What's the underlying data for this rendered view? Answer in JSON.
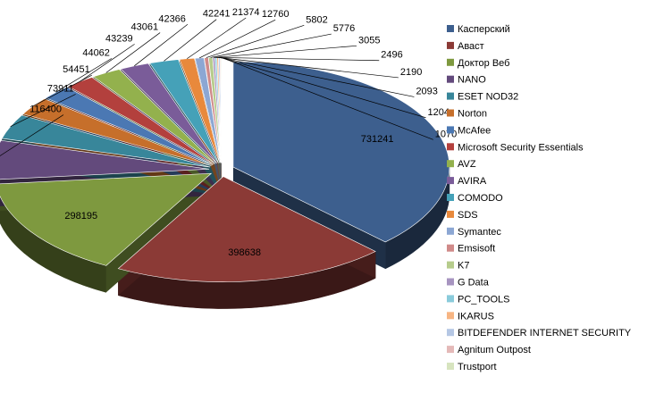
{
  "chart_data": {
    "type": "pie",
    "style": "3d-exploded",
    "legend_position": "right",
    "title": "",
    "series": [
      {
        "name": "Касперский",
        "value": 731241,
        "color": "#3D5F8E"
      },
      {
        "name": "Аваст",
        "value": 398638,
        "color": "#8B3A36"
      },
      {
        "name": "Доктор Веб",
        "value": 298195,
        "color": "#7E993F"
      },
      {
        "name": "NANO",
        "value": 116400,
        "color": "#634A7C"
      },
      {
        "name": "ESET NOD32",
        "value": 73911,
        "color": "#38869A"
      },
      {
        "name": "Norton",
        "value": 54451,
        "color": "#C66F2B"
      },
      {
        "name": "McAfee",
        "value": 44062,
        "color": "#4B78B3"
      },
      {
        "name": "Microsoft Security Essentials",
        "value": 43239,
        "color": "#B3403D"
      },
      {
        "name": "AVZ",
        "value": 43061,
        "color": "#93B14D"
      },
      {
        "name": "AVIRA",
        "value": 42366,
        "color": "#7A5C99"
      },
      {
        "name": "COMODO",
        "value": 42241,
        "color": "#45A1B8"
      },
      {
        "name": "SDS",
        "value": 21374,
        "color": "#E8893C"
      },
      {
        "name": "Symantec",
        "value": 12760,
        "color": "#8CA7D3"
      },
      {
        "name": "Emsisoft",
        "value": 5802,
        "color": "#D08A89"
      },
      {
        "name": "K7",
        "value": 5776,
        "color": "#B6CC8C"
      },
      {
        "name": "G Data",
        "value": 3055,
        "color": "#A794C0"
      },
      {
        "name": "PC_TOOLS",
        "value": 2496,
        "color": "#8ACBDB"
      },
      {
        "name": "IKARUS",
        "value": 2190,
        "color": "#F7B583"
      },
      {
        "name": "BITDEFENDER INTERNET SECURITY",
        "value": 2093,
        "color": "#B5C7E4"
      },
      {
        "name": "Agnitum Outpost",
        "value": 1204,
        "color": "#E4B9B8"
      },
      {
        "name": "Trustport",
        "value": 1070,
        "color": "#D7E4BF"
      }
    ]
  }
}
